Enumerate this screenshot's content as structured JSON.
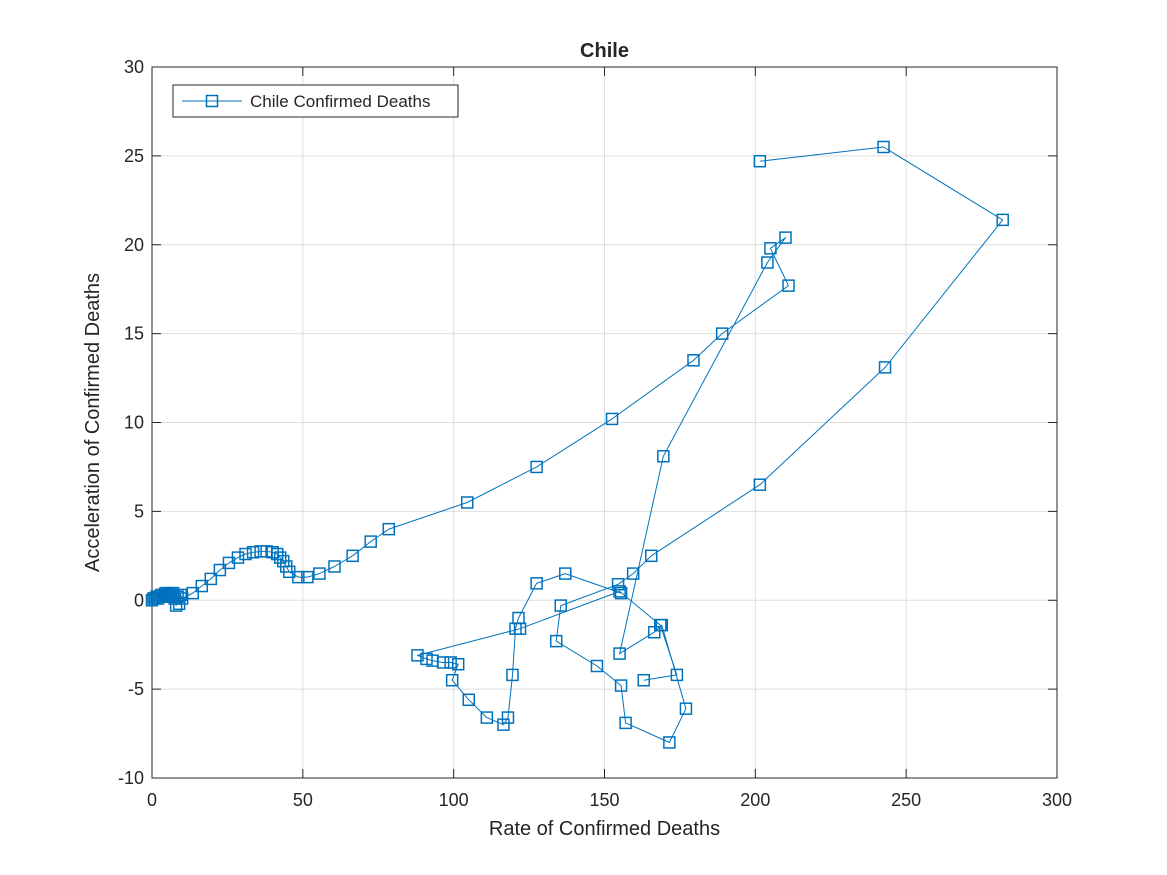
{
  "chart_data": {
    "type": "line",
    "title": "Chile",
    "xlabel": "Rate of Confirmed Deaths",
    "ylabel": "Acceleration of Confirmed Deaths",
    "xlim": [
      0,
      300
    ],
    "ylim": [
      -10,
      30
    ],
    "xticks": [
      0,
      50,
      100,
      150,
      200,
      250,
      300
    ],
    "yticks": [
      -10,
      -5,
      0,
      5,
      10,
      15,
      20,
      25,
      30
    ],
    "grid": true,
    "legend_position": "top-left",
    "marker": "square",
    "color": "#0072BD",
    "series": [
      {
        "name": "Chile Confirmed Deaths",
        "points": [
          [
            0,
            0
          ],
          [
            0.5,
            0.1
          ],
          [
            1,
            0.1
          ],
          [
            1.5,
            0.2
          ],
          [
            2,
            0.1
          ],
          [
            2.5,
            0.2
          ],
          [
            3,
            0.3
          ],
          [
            3.5,
            0.2
          ],
          [
            4,
            0.3
          ],
          [
            4.5,
            0.4
          ],
          [
            5,
            0.3
          ],
          [
            5.5,
            0.4
          ],
          [
            6,
            0.2
          ],
          [
            6.5,
            0.3
          ],
          [
            7,
            0.4
          ],
          [
            7.5,
            0.1
          ],
          [
            8,
            -0.3
          ],
          [
            8.5,
            0.2
          ],
          [
            9,
            -0.2
          ],
          [
            9.5,
            0.3
          ],
          [
            10,
            0.1
          ],
          [
            13.5,
            0.4
          ],
          [
            16.5,
            0.8
          ],
          [
            19.5,
            1.2
          ],
          [
            22.5,
            1.7
          ],
          [
            25.5,
            2.1
          ],
          [
            28.5,
            2.4
          ],
          [
            31,
            2.6
          ],
          [
            33.5,
            2.7
          ],
          [
            36,
            2.75
          ],
          [
            38,
            2.75
          ],
          [
            40,
            2.7
          ],
          [
            41.5,
            2.6
          ],
          [
            42.5,
            2.4
          ],
          [
            43.5,
            2.2
          ],
          [
            44.5,
            1.9
          ],
          [
            45.5,
            1.6
          ],
          [
            48.5,
            1.3
          ],
          [
            51.5,
            1.3
          ],
          [
            55.5,
            1.5
          ],
          [
            60.5,
            1.9
          ],
          [
            66.5,
            2.5
          ],
          [
            72.5,
            3.3
          ],
          [
            78.5,
            4.0
          ],
          [
            104.5,
            5.5
          ],
          [
            127.5,
            7.5
          ],
          [
            152.5,
            10.2
          ],
          [
            179.5,
            13.5
          ],
          [
            189,
            15.0
          ],
          [
            211,
            17.7
          ],
          [
            205,
            19.8
          ],
          [
            210,
            20.4
          ],
          [
            204,
            19.0
          ],
          [
            169.5,
            8.1
          ],
          [
            155,
            -3.0
          ],
          [
            166.5,
            -1.8
          ],
          [
            169,
            -1.4
          ],
          [
            177,
            -6.1
          ],
          [
            171.5,
            -8.0
          ],
          [
            157,
            -6.9
          ],
          [
            155.5,
            -4.8
          ],
          [
            147.5,
            -3.7
          ],
          [
            134,
            -2.3
          ],
          [
            135.5,
            -0.3
          ],
          [
            154.5,
            0.9
          ],
          [
            159.5,
            1.5
          ],
          [
            165.5,
            2.5
          ],
          [
            201.5,
            6.5
          ],
          [
            243,
            13.1
          ],
          [
            282,
            21.4
          ],
          [
            242.5,
            25.5
          ],
          [
            201.5,
            24.7
          ]
        ]
      },
      {
        "name": "",
        "points": [
          [
            155.5,
            0.4
          ],
          [
            137,
            1.5
          ],
          [
            127.5,
            0.95
          ],
          [
            121.5,
            -1.0
          ],
          [
            120.5,
            -1.6
          ],
          [
            119.5,
            -4.2
          ],
          [
            118,
            -6.6
          ],
          [
            116.5,
            -7.0
          ],
          [
            111,
            -6.6
          ],
          [
            105,
            -5.6
          ],
          [
            99.5,
            -4.5
          ],
          [
            101.5,
            -3.6
          ],
          [
            99,
            -3.5
          ],
          [
            96.5,
            -3.5
          ],
          [
            93,
            -3.4
          ],
          [
            91,
            -3.3
          ],
          [
            88,
            -3.1
          ],
          [
            122,
            -1.6
          ],
          [
            155,
            0.5
          ],
          [
            168.5,
            -1.4
          ],
          [
            174,
            -4.2
          ],
          [
            163,
            -4.5
          ]
        ]
      }
    ]
  }
}
